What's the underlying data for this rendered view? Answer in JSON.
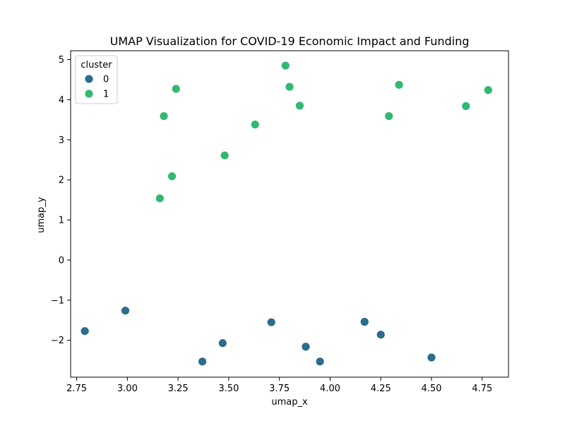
{
  "chart_data": {
    "type": "scatter",
    "title": "UMAP Visualization for COVID-19 Economic Impact and Funding",
    "xlabel": "umap_x",
    "ylabel": "umap_y",
    "xlim": [
      2.72,
      4.88
    ],
    "ylim": [
      -2.92,
      5.22
    ],
    "xticks": [
      2.75,
      3.0,
      3.25,
      3.5,
      3.75,
      4.0,
      4.25,
      4.5,
      4.75
    ],
    "xtick_labels": [
      "2.75",
      "3.00",
      "3.25",
      "3.50",
      "3.75",
      "4.00",
      "4.25",
      "4.50",
      "4.75"
    ],
    "yticks": [
      -2,
      -1,
      0,
      1,
      2,
      3,
      4,
      5
    ],
    "ytick_labels": [
      "−2",
      "−1",
      "0",
      "1",
      "2",
      "3",
      "4",
      "5"
    ],
    "grid": false,
    "legend": {
      "title": "cluster",
      "placement": "top-left"
    },
    "series": [
      {
        "name": "0",
        "color": "#2c6c8d",
        "points": [
          {
            "x": 2.79,
            "y": -1.77
          },
          {
            "x": 2.99,
            "y": -1.26
          },
          {
            "x": 3.37,
            "y": -2.53
          },
          {
            "x": 3.47,
            "y": -2.07
          },
          {
            "x": 3.71,
            "y": -1.55
          },
          {
            "x": 3.88,
            "y": -2.16
          },
          {
            "x": 3.95,
            "y": -2.53
          },
          {
            "x": 4.17,
            "y": -1.54
          },
          {
            "x": 4.25,
            "y": -1.86
          },
          {
            "x": 4.5,
            "y": -2.43
          }
        ]
      },
      {
        "name": "1",
        "color": "#33b872",
        "points": [
          {
            "x": 3.16,
            "y": 1.54
          },
          {
            "x": 3.18,
            "y": 3.59
          },
          {
            "x": 3.22,
            "y": 2.09
          },
          {
            "x": 3.24,
            "y": 4.27
          },
          {
            "x": 3.48,
            "y": 2.61
          },
          {
            "x": 3.63,
            "y": 3.38
          },
          {
            "x": 3.78,
            "y": 4.85
          },
          {
            "x": 3.8,
            "y": 4.32
          },
          {
            "x": 3.85,
            "y": 3.85
          },
          {
            "x": 4.29,
            "y": 3.59
          },
          {
            "x": 4.34,
            "y": 4.37
          },
          {
            "x": 4.67,
            "y": 3.84
          },
          {
            "x": 4.78,
            "y": 4.24
          }
        ]
      }
    ]
  }
}
